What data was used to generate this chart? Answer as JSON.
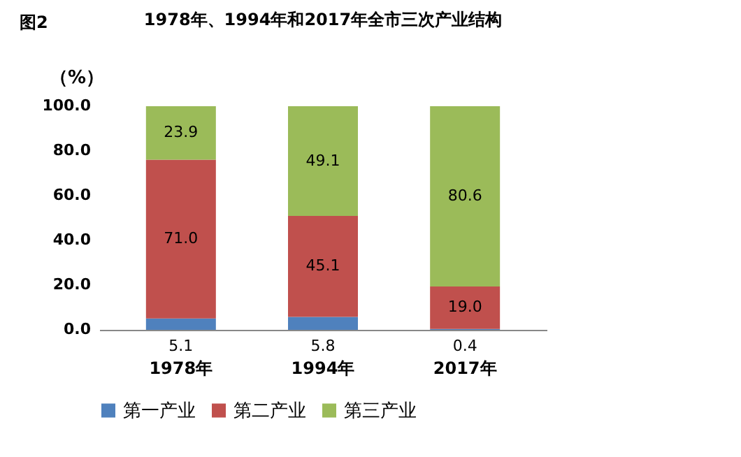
{
  "chart_data": {
    "type": "bar",
    "title": "1978年、1994年和2017年全市三次产业结构",
    "annotations": [
      "图2"
    ],
    "ylabel": "（%）",
    "categories": [
      "1978年",
      "1994年",
      "2017年"
    ],
    "stacked": true,
    "series": [
      {
        "name": "第一产业",
        "color": "#4f81bd",
        "values": [
          5.1,
          5.8,
          0.4
        ],
        "value_labels": [
          "5.1",
          "5.8",
          "0.4"
        ]
      },
      {
        "name": "第二产业",
        "color": "#c0504d",
        "values": [
          71.0,
          45.1,
          19.0
        ],
        "value_labels": [
          "71.0",
          "45.1",
          "19.0"
        ]
      },
      {
        "name": "第三产业",
        "color": "#9bbb59",
        "values": [
          23.9,
          49.1,
          80.6
        ],
        "value_labels": [
          "23.9",
          "49.1",
          "80.6"
        ]
      }
    ],
    "ylim": [
      0,
      100
    ],
    "yticks": [
      {
        "value": 0,
        "label": "0.0"
      },
      {
        "value": 20,
        "label": "20.0"
      },
      {
        "value": 40,
        "label": "40.0"
      },
      {
        "value": 60,
        "label": "60.0"
      },
      {
        "value": 80,
        "label": "80.0"
      },
      {
        "value": 100,
        "label": "100.0"
      }
    ],
    "grid": false,
    "legend": "bottom"
  }
}
